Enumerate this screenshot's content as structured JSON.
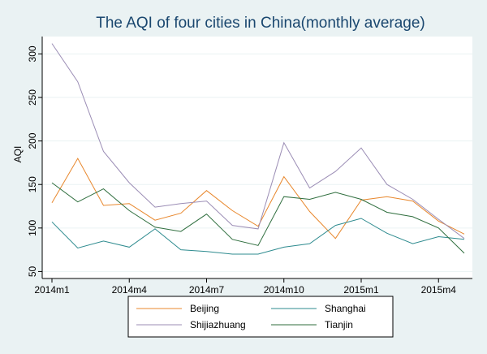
{
  "chart_data": {
    "type": "line",
    "title": "The AQI of four cities in China(monthly average)",
    "xlabel": "",
    "ylabel": "AQI",
    "x_ticks": [
      "2014m1",
      "2014m4",
      "2014m7",
      "2014m10",
      "2015m1",
      "2015m4"
    ],
    "x_tick_index": [
      0,
      3,
      6,
      9,
      12,
      15
    ],
    "y_ticks": [
      50,
      100,
      150,
      200,
      250,
      300
    ],
    "ylim": [
      42,
      320
    ],
    "grid": "horizontal",
    "legend_position": "bottom",
    "categories": [
      "2014m1",
      "2014m2",
      "2014m3",
      "2014m4",
      "2014m5",
      "2014m6",
      "2014m7",
      "2014m8",
      "2014m9",
      "2014m10",
      "2014m11",
      "2014m12",
      "2015m1",
      "2015m2",
      "2015m3",
      "2015m4",
      "2015m5"
    ],
    "series": [
      {
        "name": "Beijing",
        "color": "#e8872c",
        "values": [
          129,
          180,
          126,
          128,
          109,
          117,
          143,
          120,
          102,
          159,
          119,
          88,
          132,
          136,
          131,
          108,
          93
        ]
      },
      {
        "name": "Shanghai",
        "color": "#2e8b8f",
        "values": [
          107,
          77,
          85,
          78,
          99,
          75,
          73,
          70,
          70,
          78,
          82,
          103,
          111,
          94,
          82,
          90,
          87
        ]
      },
      {
        "name": "Shijiazhuang",
        "color": "#9b8db5",
        "values": [
          312,
          268,
          188,
          152,
          124,
          128,
          131,
          103,
          99,
          198,
          146,
          165,
          192,
          150,
          133,
          110,
          88
        ]
      },
      {
        "name": "Tianjin",
        "color": "#2f6e3e",
        "values": [
          152,
          130,
          145,
          120,
          101,
          96,
          116,
          87,
          80,
          136,
          133,
          141,
          133,
          118,
          113,
          100,
          71
        ]
      }
    ]
  }
}
